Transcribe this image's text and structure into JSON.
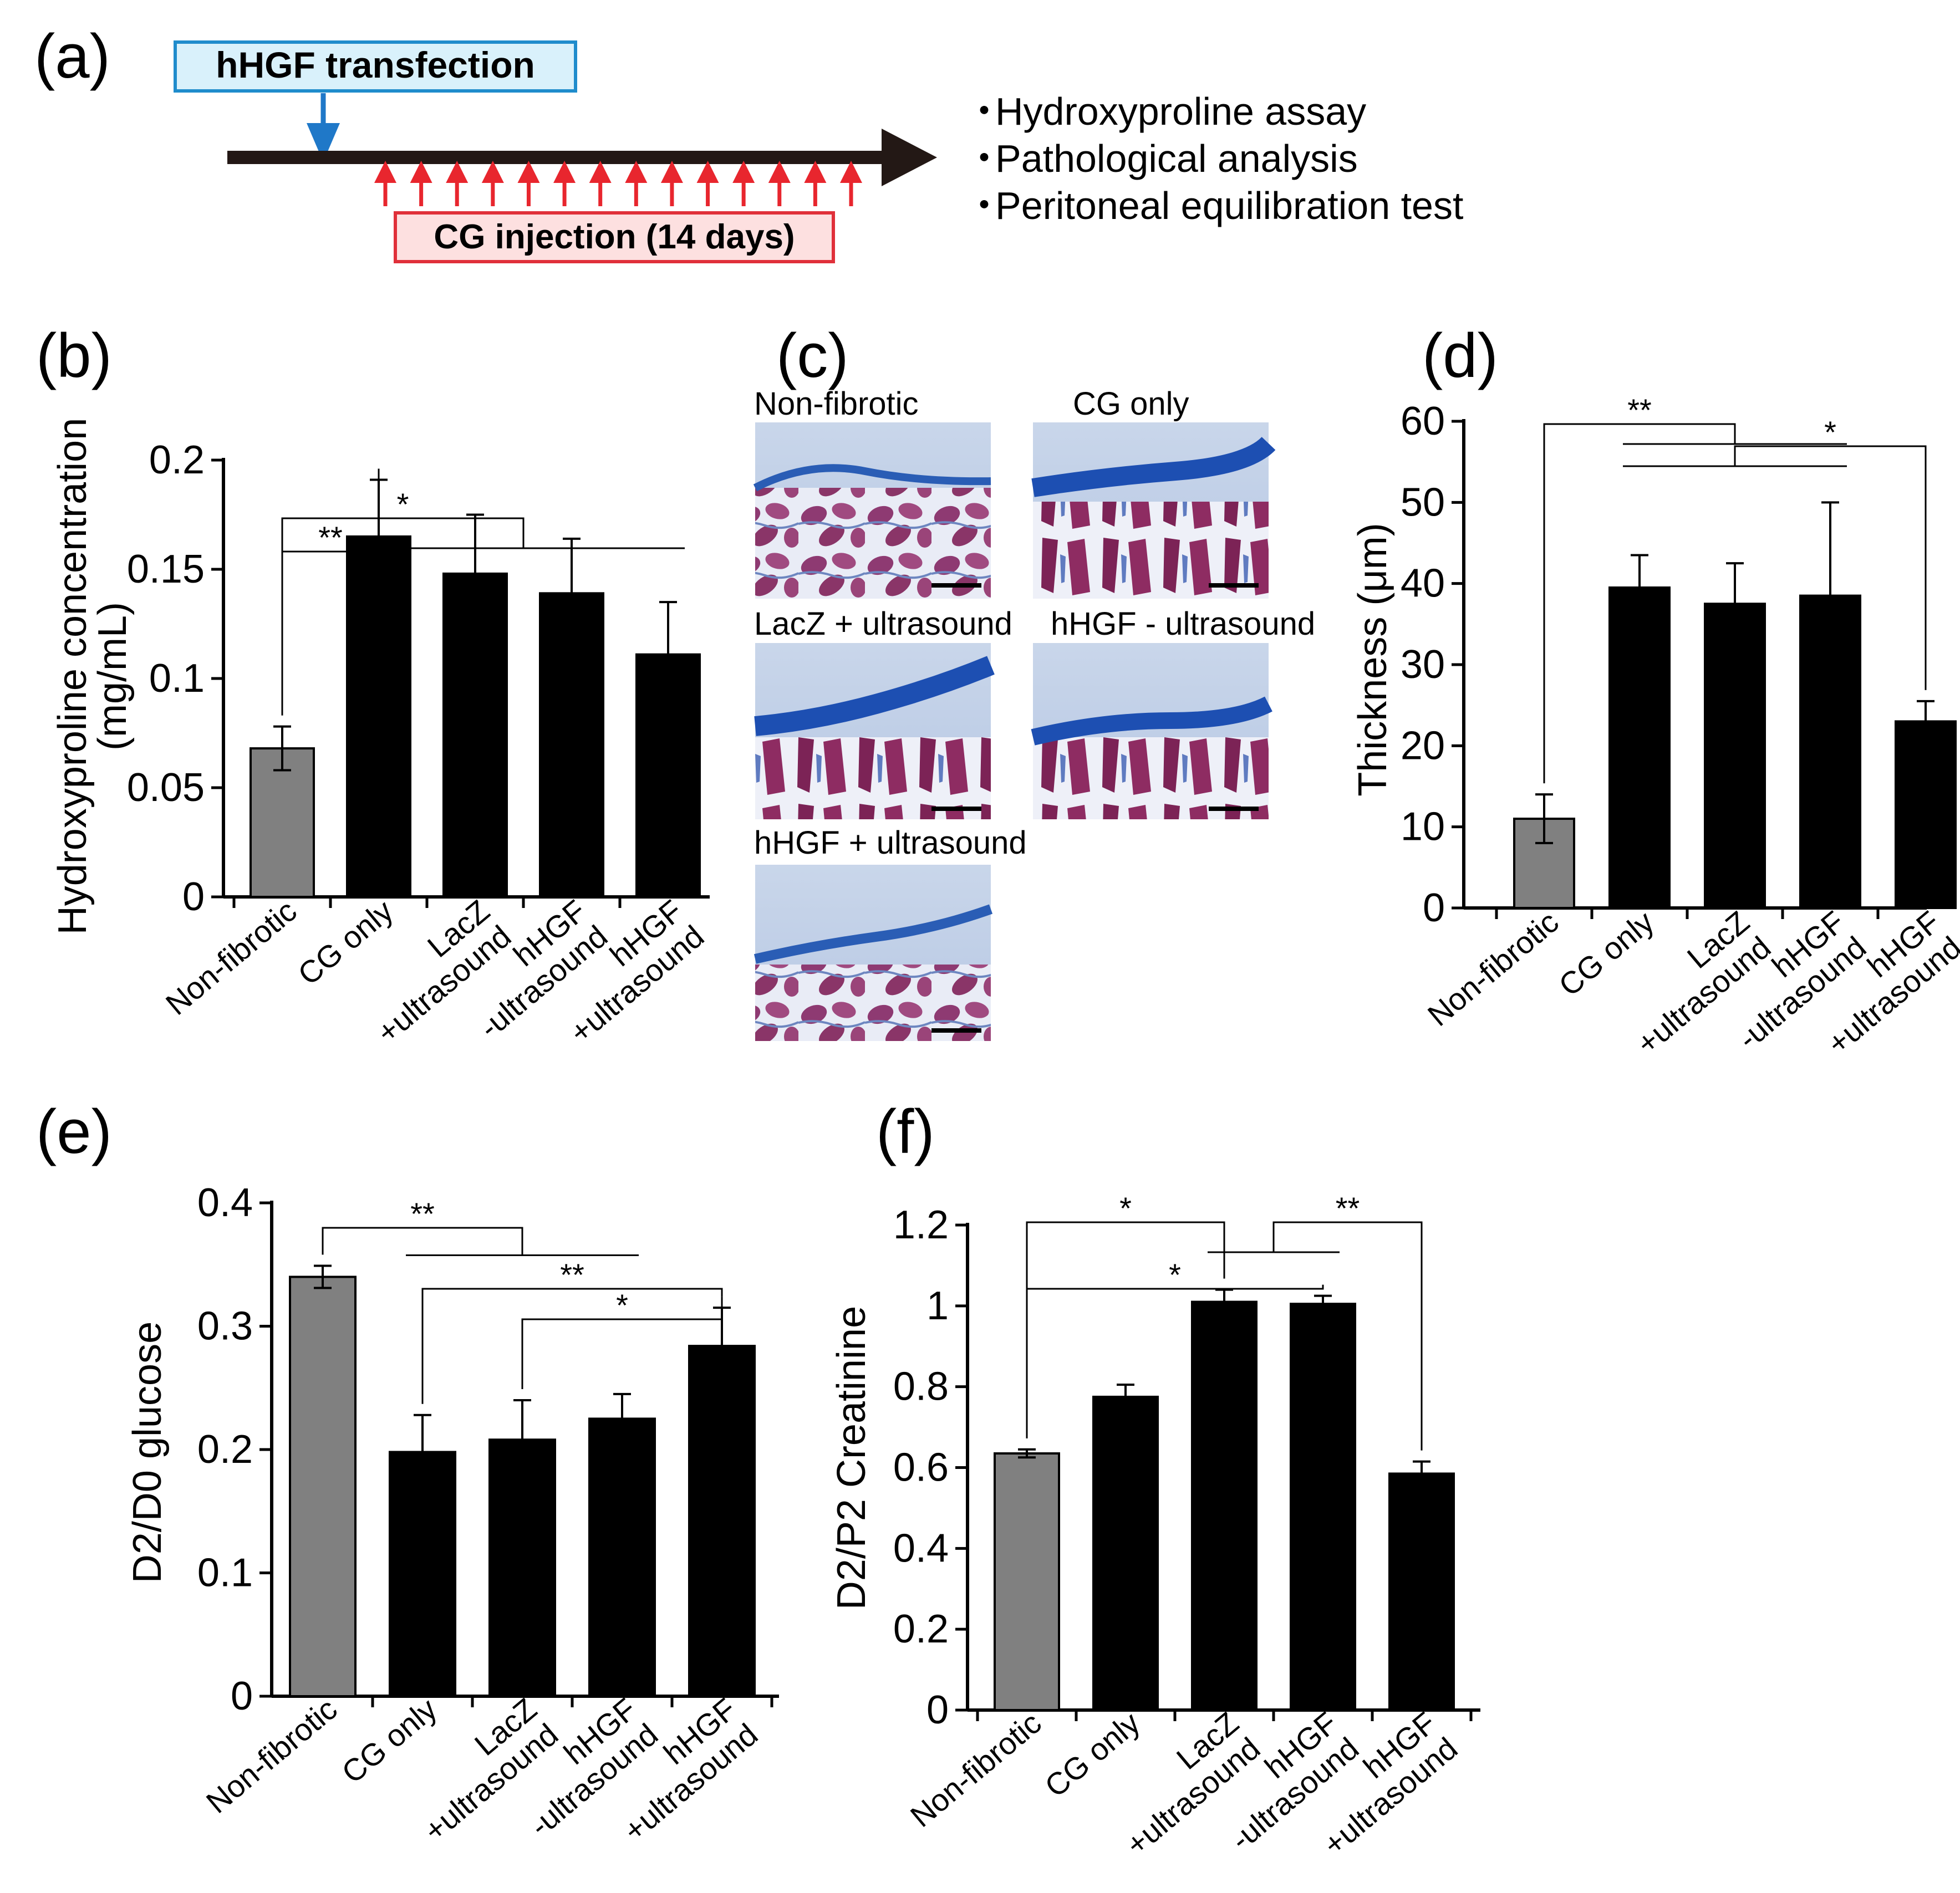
{
  "panel_a": {
    "letter": "(a)",
    "transfection_label": "hHGF transfection",
    "injection_label": "CG injection (14 days)",
    "injection_count": 14,
    "outcomes": [
      "Hydroxyproline assay",
      "Pathological analysis",
      "Peritoneal equilibration test"
    ],
    "bullet": "・",
    "colors": {
      "transfection_box_fill": "#d9f1fb",
      "transfection_box_stroke": "#1f8ccc",
      "injection_box_fill": "#fde0e0",
      "injection_box_stroke": "#e0303a",
      "arrow_blue": "#1f78c8",
      "arrow_red": "#e8262e"
    }
  },
  "panel_c": {
    "letter": "(c)",
    "micrographs": [
      {
        "label": "Non-fibrotic",
        "layer": "thin"
      },
      {
        "label": "CG only",
        "layer": "thick"
      },
      {
        "label": "LacZ + ultrasound",
        "layer": "thick"
      },
      {
        "label": "hHGF - ultrasound",
        "layer": "thick"
      },
      {
        "label": "hHGF + ultrasound",
        "layer": "medium"
      }
    ]
  },
  "chart_data": [
    {
      "id": "b",
      "letter": "(b)",
      "type": "bar",
      "categories": [
        "Non-fibrotic",
        "CG only",
        "LacZ\n+ultrasound",
        "hHGF\n-ultrasound",
        "hHGF\n+ultrasound"
      ],
      "values": [
        0.068,
        0.165,
        0.148,
        0.139,
        0.111
      ],
      "errors": [
        0.01,
        0.026,
        0.027,
        0.025,
        0.024
      ],
      "bar_colors": [
        "#808080",
        "#000000",
        "#000000",
        "#000000",
        "#000000"
      ],
      "ylabel": "Hydroxyproline concentration\n(mg/mL)",
      "ylim": [
        0,
        0.2
      ],
      "yticks": [
        0,
        0.05,
        0.1,
        0.15,
        0.2
      ],
      "ytick_labels": [
        "0",
        "0.05",
        "0.1",
        "0.15",
        "0.2"
      ],
      "significance": [
        {
          "type": "pair",
          "from": 0,
          "to": 1,
          "label": "**",
          "level": 1
        },
        {
          "type": "group",
          "from": 0,
          "to_group": [
            1,
            4
          ],
          "label": "*",
          "level": 2
        }
      ]
    },
    {
      "id": "d",
      "letter": "(d)",
      "type": "bar",
      "categories": [
        "Non-fibrotic",
        "CG only",
        "LacZ\n+ultrasound",
        "hHGF\n-ultrasound",
        "hHGF\n+ultrasound"
      ],
      "values": [
        11,
        39.5,
        37.5,
        38.5,
        23
      ],
      "errors": [
        3,
        4,
        5,
        11.5,
        2.5
      ],
      "bar_colors": [
        "#808080",
        "#000000",
        "#000000",
        "#000000",
        "#000000"
      ],
      "ylabel": "Thickness (μm)",
      "ylim": [
        0,
        60
      ],
      "yticks": [
        0,
        10,
        20,
        30,
        40,
        50,
        60
      ],
      "ytick_labels": [
        "0",
        "10",
        "20",
        "30",
        "40",
        "50",
        "60"
      ],
      "significance": [
        {
          "type": "group",
          "from": 0,
          "to_group": [
            1,
            3
          ],
          "label": "**",
          "level": 3
        },
        {
          "type": "group",
          "from": 4,
          "to_group": [
            1,
            3
          ],
          "label": "*",
          "level": 2
        }
      ]
    },
    {
      "id": "e",
      "letter": "(e)",
      "type": "bar",
      "categories": [
        "Non-fibrotic",
        "CG only",
        "LacZ\n+ultrasound",
        "hHGF\n-ultrasound",
        "hHGF\n+ultrasound"
      ],
      "values": [
        0.34,
        0.198,
        0.208,
        0.225,
        0.284
      ],
      "errors": [
        0.009,
        0.03,
        0.032,
        0.02,
        0.031
      ],
      "bar_colors": [
        "#808080",
        "#000000",
        "#000000",
        "#000000",
        "#000000"
      ],
      "ylabel": "D2/D0 glucose",
      "ylim": [
        0,
        0.4
      ],
      "yticks": [
        0,
        0.1,
        0.2,
        0.3,
        0.4
      ],
      "ytick_labels": [
        "0",
        "0.1",
        "0.2",
        "0.3",
        "0.4"
      ],
      "significance": [
        {
          "type": "group",
          "from": 0,
          "to_group": [
            1,
            3
          ],
          "label": "**",
          "level": 4
        },
        {
          "type": "pair",
          "from": 1,
          "to": 4,
          "label": "**",
          "level": 2
        },
        {
          "type": "pair",
          "from": 2,
          "to": 4,
          "label": "*",
          "level": 1
        }
      ]
    },
    {
      "id": "f",
      "letter": "(f)",
      "type": "bar",
      "categories": [
        "Non-fibrotic",
        "CG only",
        "LacZ\n+ultrasound",
        "hHGF\n-ultrasound",
        "hHGF\n+ultrasound"
      ],
      "values": [
        0.635,
        0.775,
        1.01,
        1.005,
        0.585
      ],
      "errors": [
        0.01,
        0.03,
        0.03,
        0.02,
        0.03
      ],
      "bar_colors": [
        "#808080",
        "#000000",
        "#000000",
        "#000000",
        "#000000"
      ],
      "ylabel": "D2/P2 Creatinine",
      "ylim": [
        0,
        1.2
      ],
      "yticks": [
        0,
        0.2,
        0.4,
        0.6,
        0.8,
        1,
        1.2
      ],
      "ytick_labels": [
        "0",
        "0.2",
        "0.4",
        "0.6",
        "0.8",
        "1",
        "1.2"
      ],
      "significance": [
        {
          "type": "pair",
          "from": 0,
          "to": 2,
          "label": "*",
          "level": 3
        },
        {
          "type": "pair",
          "from": 0,
          "to": 3,
          "label": "*",
          "level": 1
        },
        {
          "type": "group",
          "from": 4,
          "to_group": [
            2,
            3
          ],
          "label": "**",
          "level": 3
        }
      ]
    }
  ]
}
